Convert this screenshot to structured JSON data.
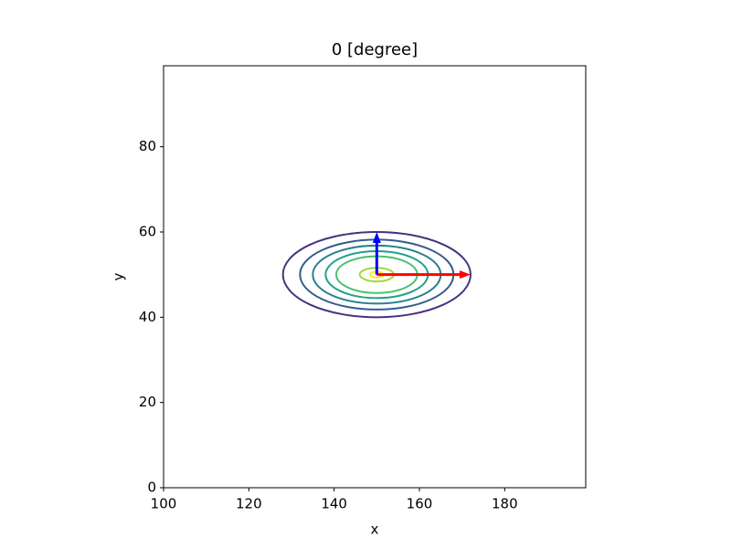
{
  "chart_data": {
    "type": "contour",
    "title": "0 [degree]",
    "xlabel": "x",
    "ylabel": "y",
    "xlim": [
      100,
      199
    ],
    "ylim": [
      0,
      99
    ],
    "xticks": [
      100,
      120,
      140,
      160,
      180
    ],
    "yticks": [
      0,
      20,
      40,
      60,
      80
    ],
    "center": [
      150,
      50
    ],
    "contours": [
      {
        "color": "#46327e",
        "a": 22,
        "b": 10
      },
      {
        "color": "#365c8d",
        "a": 18,
        "b": 8.2
      },
      {
        "color": "#277f8e",
        "a": 15,
        "b": 6.8
      },
      {
        "color": "#1fa187",
        "a": 12,
        "b": 5.5
      },
      {
        "color": "#4ac16d",
        "a": 9.5,
        "b": 4.3
      },
      {
        "color": "#a0da39",
        "a": 4,
        "b": 1.6
      },
      {
        "color": "#fde725",
        "a": 1.5,
        "b": 0.7
      }
    ],
    "arrows": [
      {
        "color": "#ff0000",
        "x": 150,
        "y": 50,
        "dx": 22,
        "dy": 0
      },
      {
        "color": "#0000ff",
        "x": 150,
        "y": 50,
        "dx": 0,
        "dy": 10
      }
    ]
  }
}
